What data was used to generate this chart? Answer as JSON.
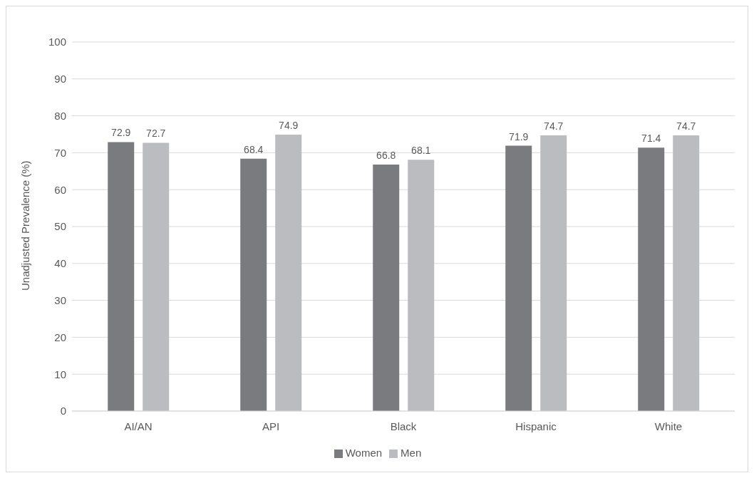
{
  "chart_data": {
    "type": "bar",
    "ylabel": "Unadjusted Prevalence (%)",
    "categories": [
      "AI/AN",
      "API",
      "Black",
      "Hispanic",
      "White"
    ],
    "series": [
      {
        "name": "Women",
        "color": "#7a7b7f",
        "values": [
          72.9,
          68.4,
          66.8,
          71.9,
          71.4
        ]
      },
      {
        "name": "Men",
        "color": "#bbbcc0",
        "values": [
          72.7,
          74.9,
          68.1,
          74.7,
          74.7
        ]
      }
    ],
    "ylim": [
      0,
      100
    ],
    "yticks": [
      0,
      10,
      20,
      30,
      40,
      50,
      60,
      70,
      80,
      90,
      100
    ],
    "grid": "y",
    "legend": "bottom",
    "data_labels": true
  }
}
